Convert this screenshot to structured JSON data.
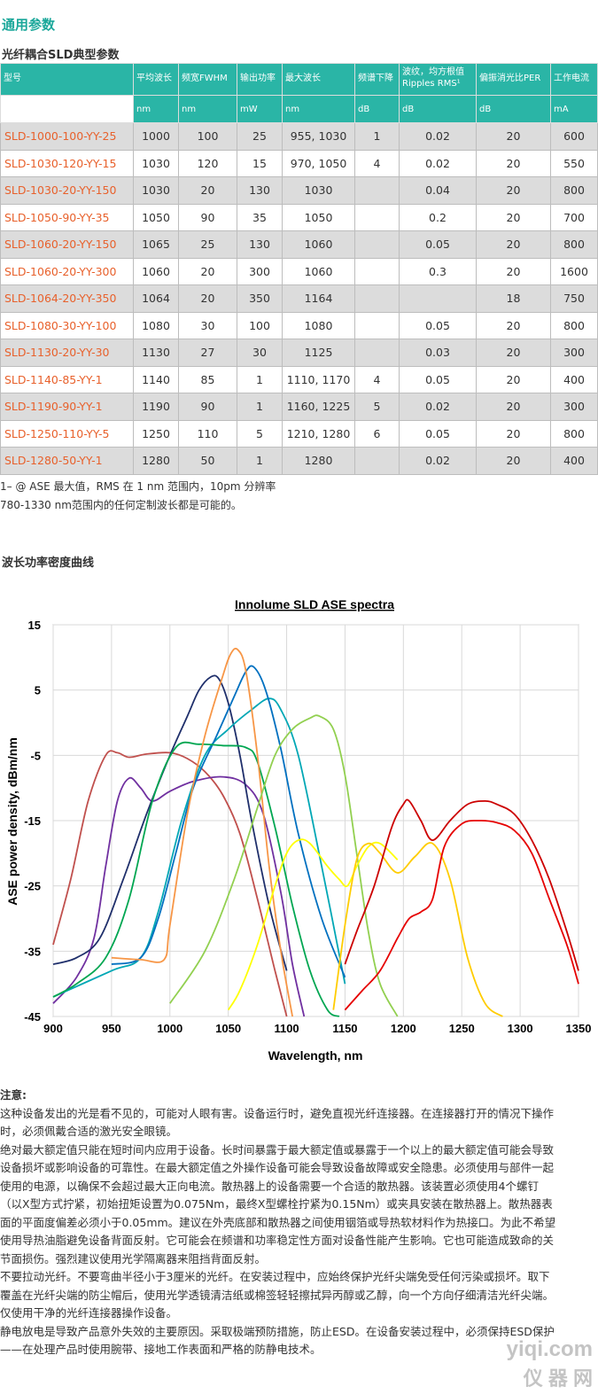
{
  "section_title": "通用参数",
  "table_title": "光纤耦合SLD典型参数",
  "table": {
    "headers": [
      "型号",
      "平均波长",
      "频宽FWHM",
      "输出功率",
      "最大波长",
      "频谱下降",
      "波纹，均方根值 Ripples RMS¹",
      "偏振消光比PER",
      "工作电流"
    ],
    "units": [
      "",
      "nm",
      "nm",
      "mW",
      "nm",
      "dB",
      "dB",
      "dB",
      "mA"
    ],
    "rows": [
      {
        "model": "SLD-1000-100-YY-25",
        "avg": "1000",
        "fwhm": "100",
        "power": "25",
        "max": "955, 1030",
        "dip": "1",
        "ripple": "0.02",
        "per": "20",
        "current": "600"
      },
      {
        "model": "SLD-1030-120-YY-15",
        "avg": "1030",
        "fwhm": "120",
        "power": "15",
        "max": "970, 1050",
        "dip": "4",
        "ripple": "0.02",
        "per": "20",
        "current": "550"
      },
      {
        "model": "SLD-1030-20-YY-150",
        "avg": "1030",
        "fwhm": "20",
        "power": "130",
        "max": "1030",
        "dip": "",
        "ripple": "0.04",
        "per": "20",
        "current": "800"
      },
      {
        "model": "SLD-1050-90-YY-35",
        "avg": "1050",
        "fwhm": "90",
        "power": "35",
        "max": "1050",
        "dip": "",
        "ripple": "0.2",
        "per": "20",
        "current": "700"
      },
      {
        "model": "SLD-1060-20-YY-150",
        "avg": "1065",
        "fwhm": "25",
        "power": "130",
        "max": "1060",
        "dip": "",
        "ripple": "0.05",
        "per": "20",
        "current": "800"
      },
      {
        "model": "SLD-1060-20-YY-300",
        "avg": "1060",
        "fwhm": "20",
        "power": "300",
        "max": "1060",
        "dip": "",
        "ripple": "0.3",
        "per": "20",
        "current": "1600"
      },
      {
        "model": "SLD-1064-20-YY-350",
        "avg": "1064",
        "fwhm": "20",
        "power": "350",
        "max": "1164",
        "dip": "",
        "ripple": "",
        "per": "18",
        "current": "750"
      },
      {
        "model": "SLD-1080-30-YY-100",
        "avg": "1080",
        "fwhm": "30",
        "power": "100",
        "max": "1080",
        "dip": "",
        "ripple": "0.05",
        "per": "20",
        "current": "800"
      },
      {
        "model": "SLD-1130-20-YY-30",
        "avg": "1130",
        "fwhm": "27",
        "power": "30",
        "max": "1125",
        "dip": "",
        "ripple": "0.03",
        "per": "20",
        "current": "300"
      },
      {
        "model": "SLD-1140-85-YY-1",
        "avg": "1140",
        "fwhm": "85",
        "power": "1",
        "max": "1110, 1170",
        "dip": "4",
        "ripple": "0.05",
        "per": "20",
        "current": "400"
      },
      {
        "model": "SLD-1190-90-YY-1",
        "avg": "1190",
        "fwhm": "90",
        "power": "1",
        "max": "1160, 1225",
        "dip": "5",
        "ripple": "0.02",
        "per": "20",
        "current": "300"
      },
      {
        "model": "SLD-1250-110-YY-5",
        "avg": "1250",
        "fwhm": "110",
        "power": "5",
        "max": "1210, 1280",
        "dip": "6",
        "ripple": "0.05",
        "per": "20",
        "current": "800"
      },
      {
        "model": "SLD-1280-50-YY-1",
        "avg": "1280",
        "fwhm": "50",
        "power": "1",
        "max": "1280",
        "dip": "",
        "ripple": "0.02",
        "per": "20",
        "current": "400"
      }
    ]
  },
  "footnote1": "1– @ ASE 最大值，RMS 在 1 nm 范围内，10pm 分辨率",
  "footnote2": "780-1330 nm范围内的任何定制波长都是可能的。",
  "curve_title": "波长功率密度曲线",
  "chart_data": {
    "type": "line",
    "title": "Innolume SLD ASE spectra",
    "xlabel": "Wavelength, nm",
    "ylabel": "ASE power density, dBm/nm",
    "xlim": [
      900,
      1350
    ],
    "ylim": [
      -45,
      15
    ],
    "xticks": [
      "900",
      "950",
      "1000",
      "1050",
      "1100",
      "1150",
      "1200",
      "1250",
      "1300",
      "1350"
    ],
    "yticks": [
      "15",
      "5",
      "-5",
      "-15",
      "-25",
      "-35",
      "-45"
    ],
    "grid": true,
    "series": [
      {
        "color": "#c0504d",
        "x": [
          900,
          915,
          930,
          945,
          955,
          965,
          980,
          1000,
          1015,
          1030,
          1045,
          1060,
          1075,
          1090,
          1100
        ],
        "y": [
          -34,
          -24,
          -12,
          -5,
          -4.6,
          -5.3,
          -4.8,
          -4.6,
          -5.5,
          -7.5,
          -11,
          -17,
          -27,
          -38,
          -45
        ]
      },
      {
        "color": "#7030a0",
        "x": [
          900,
          920,
          935,
          945,
          955,
          965,
          975,
          985,
          1000,
          1020,
          1045,
          1065,
          1080,
          1095,
          1105,
          1115
        ],
        "y": [
          -43,
          -39,
          -33,
          -22,
          -12,
          -8.5,
          -10,
          -12,
          -10.5,
          -9,
          -8.3,
          -9.5,
          -14,
          -26,
          -37,
          -45
        ]
      },
      {
        "color": "#1f2f6b",
        "x": [
          900,
          920,
          940,
          960,
          980,
          1000,
          1015,
          1025,
          1035,
          1042,
          1050,
          1060,
          1070,
          1085,
          1100
        ],
        "y": [
          -37,
          -36,
          -33,
          -24,
          -14,
          -5,
          1,
          5,
          7,
          6.7,
          3,
          -5,
          -15,
          -28,
          -38
        ]
      },
      {
        "color": "#00a7b5",
        "x": [
          900,
          950,
          975,
          990,
          1010,
          1030,
          1050,
          1070,
          1085,
          1095,
          1110,
          1130,
          1150
        ],
        "y": [
          -42,
          -38,
          -36,
          -29,
          -15,
          -5,
          -1,
          2,
          3.7,
          2,
          -5,
          -22,
          -40
        ]
      },
      {
        "color": "#0070c0",
        "x": [
          950,
          975,
          990,
          1005,
          1020,
          1040,
          1055,
          1065,
          1072,
          1082,
          1095,
          1110,
          1130,
          1150
        ],
        "y": [
          -37,
          -36,
          -30,
          -20,
          -10,
          -2,
          4,
          7.8,
          8.5,
          5,
          -4,
          -17,
          -30,
          -39
        ]
      },
      {
        "color": "#00a651",
        "x": [
          900,
          920,
          945,
          965,
          985,
          1005,
          1025,
          1045,
          1065,
          1075,
          1090,
          1105,
          1120,
          1135,
          1145
        ],
        "y": [
          -42,
          -40,
          -36,
          -27,
          -12,
          -3.8,
          -3.3,
          -3.5,
          -3.8,
          -6,
          -16,
          -28,
          -38,
          -44,
          -45
        ]
      },
      {
        "color": "#f79646",
        "x": [
          950,
          975,
          995,
          1000,
          1015,
          1030,
          1045,
          1052,
          1058,
          1065,
          1075,
          1085,
          1095,
          1105
        ],
        "y": [
          -36,
          -36.3,
          -36.3,
          -31,
          -14,
          -2,
          7,
          10.5,
          11.2,
          8,
          -5,
          -22,
          -35,
          -45
        ]
      },
      {
        "color": "#92d050",
        "x": [
          1000,
          1030,
          1055,
          1075,
          1090,
          1105,
          1120,
          1128,
          1140,
          1150,
          1160,
          1170,
          1180,
          1195
        ],
        "y": [
          -43,
          -35,
          -24,
          -13,
          -5,
          -1,
          0.7,
          1,
          -1,
          -8,
          -20,
          -32,
          -40,
          -45
        ]
      },
      {
        "color": "#ffff00",
        "x": [
          1050,
          1060,
          1075,
          1090,
          1100,
          1110,
          1120,
          1135,
          1145,
          1152,
          1160,
          1170,
          1180,
          1195
        ],
        "y": [
          -44,
          -41,
          -34,
          -25,
          -20,
          -18,
          -18.5,
          -22,
          -24,
          -25,
          -22,
          -19,
          -18.5,
          -21
        ]
      },
      {
        "color": "#ffcc00",
        "x": [
          1140,
          1150,
          1160,
          1170,
          1180,
          1195,
          1210,
          1225,
          1240,
          1255,
          1270,
          1285
        ],
        "y": [
          -44,
          -31,
          -21,
          -18.5,
          -20,
          -23,
          -20.5,
          -18.5,
          -24,
          -36,
          -43,
          -45
        ]
      },
      {
        "color": "#cc0000",
        "x": [
          1150,
          1160,
          1175,
          1190,
          1200,
          1205,
          1215,
          1225,
          1240,
          1255,
          1270,
          1280,
          1295,
          1310,
          1325,
          1340,
          1350
        ],
        "y": [
          -37,
          -32,
          -25,
          -16,
          -12.5,
          -12,
          -15,
          -18,
          -15,
          -12.5,
          -12,
          -12.5,
          -14,
          -18,
          -24,
          -32,
          -38
        ]
      },
      {
        "color": "#e60000",
        "x": [
          1150,
          1165,
          1180,
          1195,
          1205,
          1215,
          1225,
          1235,
          1250,
          1265,
          1280,
          1295,
          1310,
          1325,
          1340,
          1350
        ],
        "y": [
          -44,
          -41,
          -38,
          -33,
          -30,
          -29,
          -27,
          -19,
          -15.5,
          -15,
          -15.3,
          -16.5,
          -20,
          -27,
          -34,
          -40
        ]
      }
    ]
  },
  "notes": {
    "heading": "注意:",
    "lines": [
      "这种设备发出的光是看不见的，可能对人眼有害。设备运行时，避免直视光纤连接器。在连接器打开的情况下操作",
      "时，必须佩戴合适的激光安全眼镜。",
      "绝对最大额定值只能在短时间内应用于设备。长时间暴露于最大额定值或暴露于一个以上的最大额定值可能会导致",
      "设备损坏或影响设备的可靠性。在最大额定值之外操作设备可能会导致设备故障或安全隐患。必须使用与部件一起",
      "使用的电源，以确保不会超过最大正向电流。散热器上的设备需要一个合适的散热器。该装置必须使用4个螺钉",
      "（以X型方式拧紧，初始扭矩设置为0.075Nm，最终X型螺栓拧紧为0.15Nm）或夹具安装在散热器上。散热器表",
      "面的平面度偏差必须小于0.05mm。建议在外壳底部和散热器之间使用铟箔或导热软材料作为热接口。为此不希望",
      "使用导热油脂避免设备背面反射。它可能会在频谱和功率稳定性方面对设备性能产生影响。它也可能造成致命的关",
      "节面损伤。强烈建议使用光学隔离器来阻挡背面反射。",
      "不要拉动光纤。不要弯曲半径小于3厘米的光纤。在安装过程中，应始终保护光纤尖端免受任何污染或损坏。取下",
      "覆盖在光纤尖端的防尘帽后，使用光学透镜清洁纸或棉签轻轻擦拭异丙醇或乙醇，向一个方向仔细清洁光纤尖端。",
      "仅使用干净的光纤连接器操作设备。",
      "静电放电是导致产品意外失效的主要原因。采取极端预防措施，防止ESD。在设备安装过程中，必须保持ESD保护",
      "——在处理产品时使用腕带、接地工作表面和严格的防静电技术。"
    ]
  },
  "watermark": {
    "line1": "yiqi.com",
    "line2": "仪 器 网"
  }
}
